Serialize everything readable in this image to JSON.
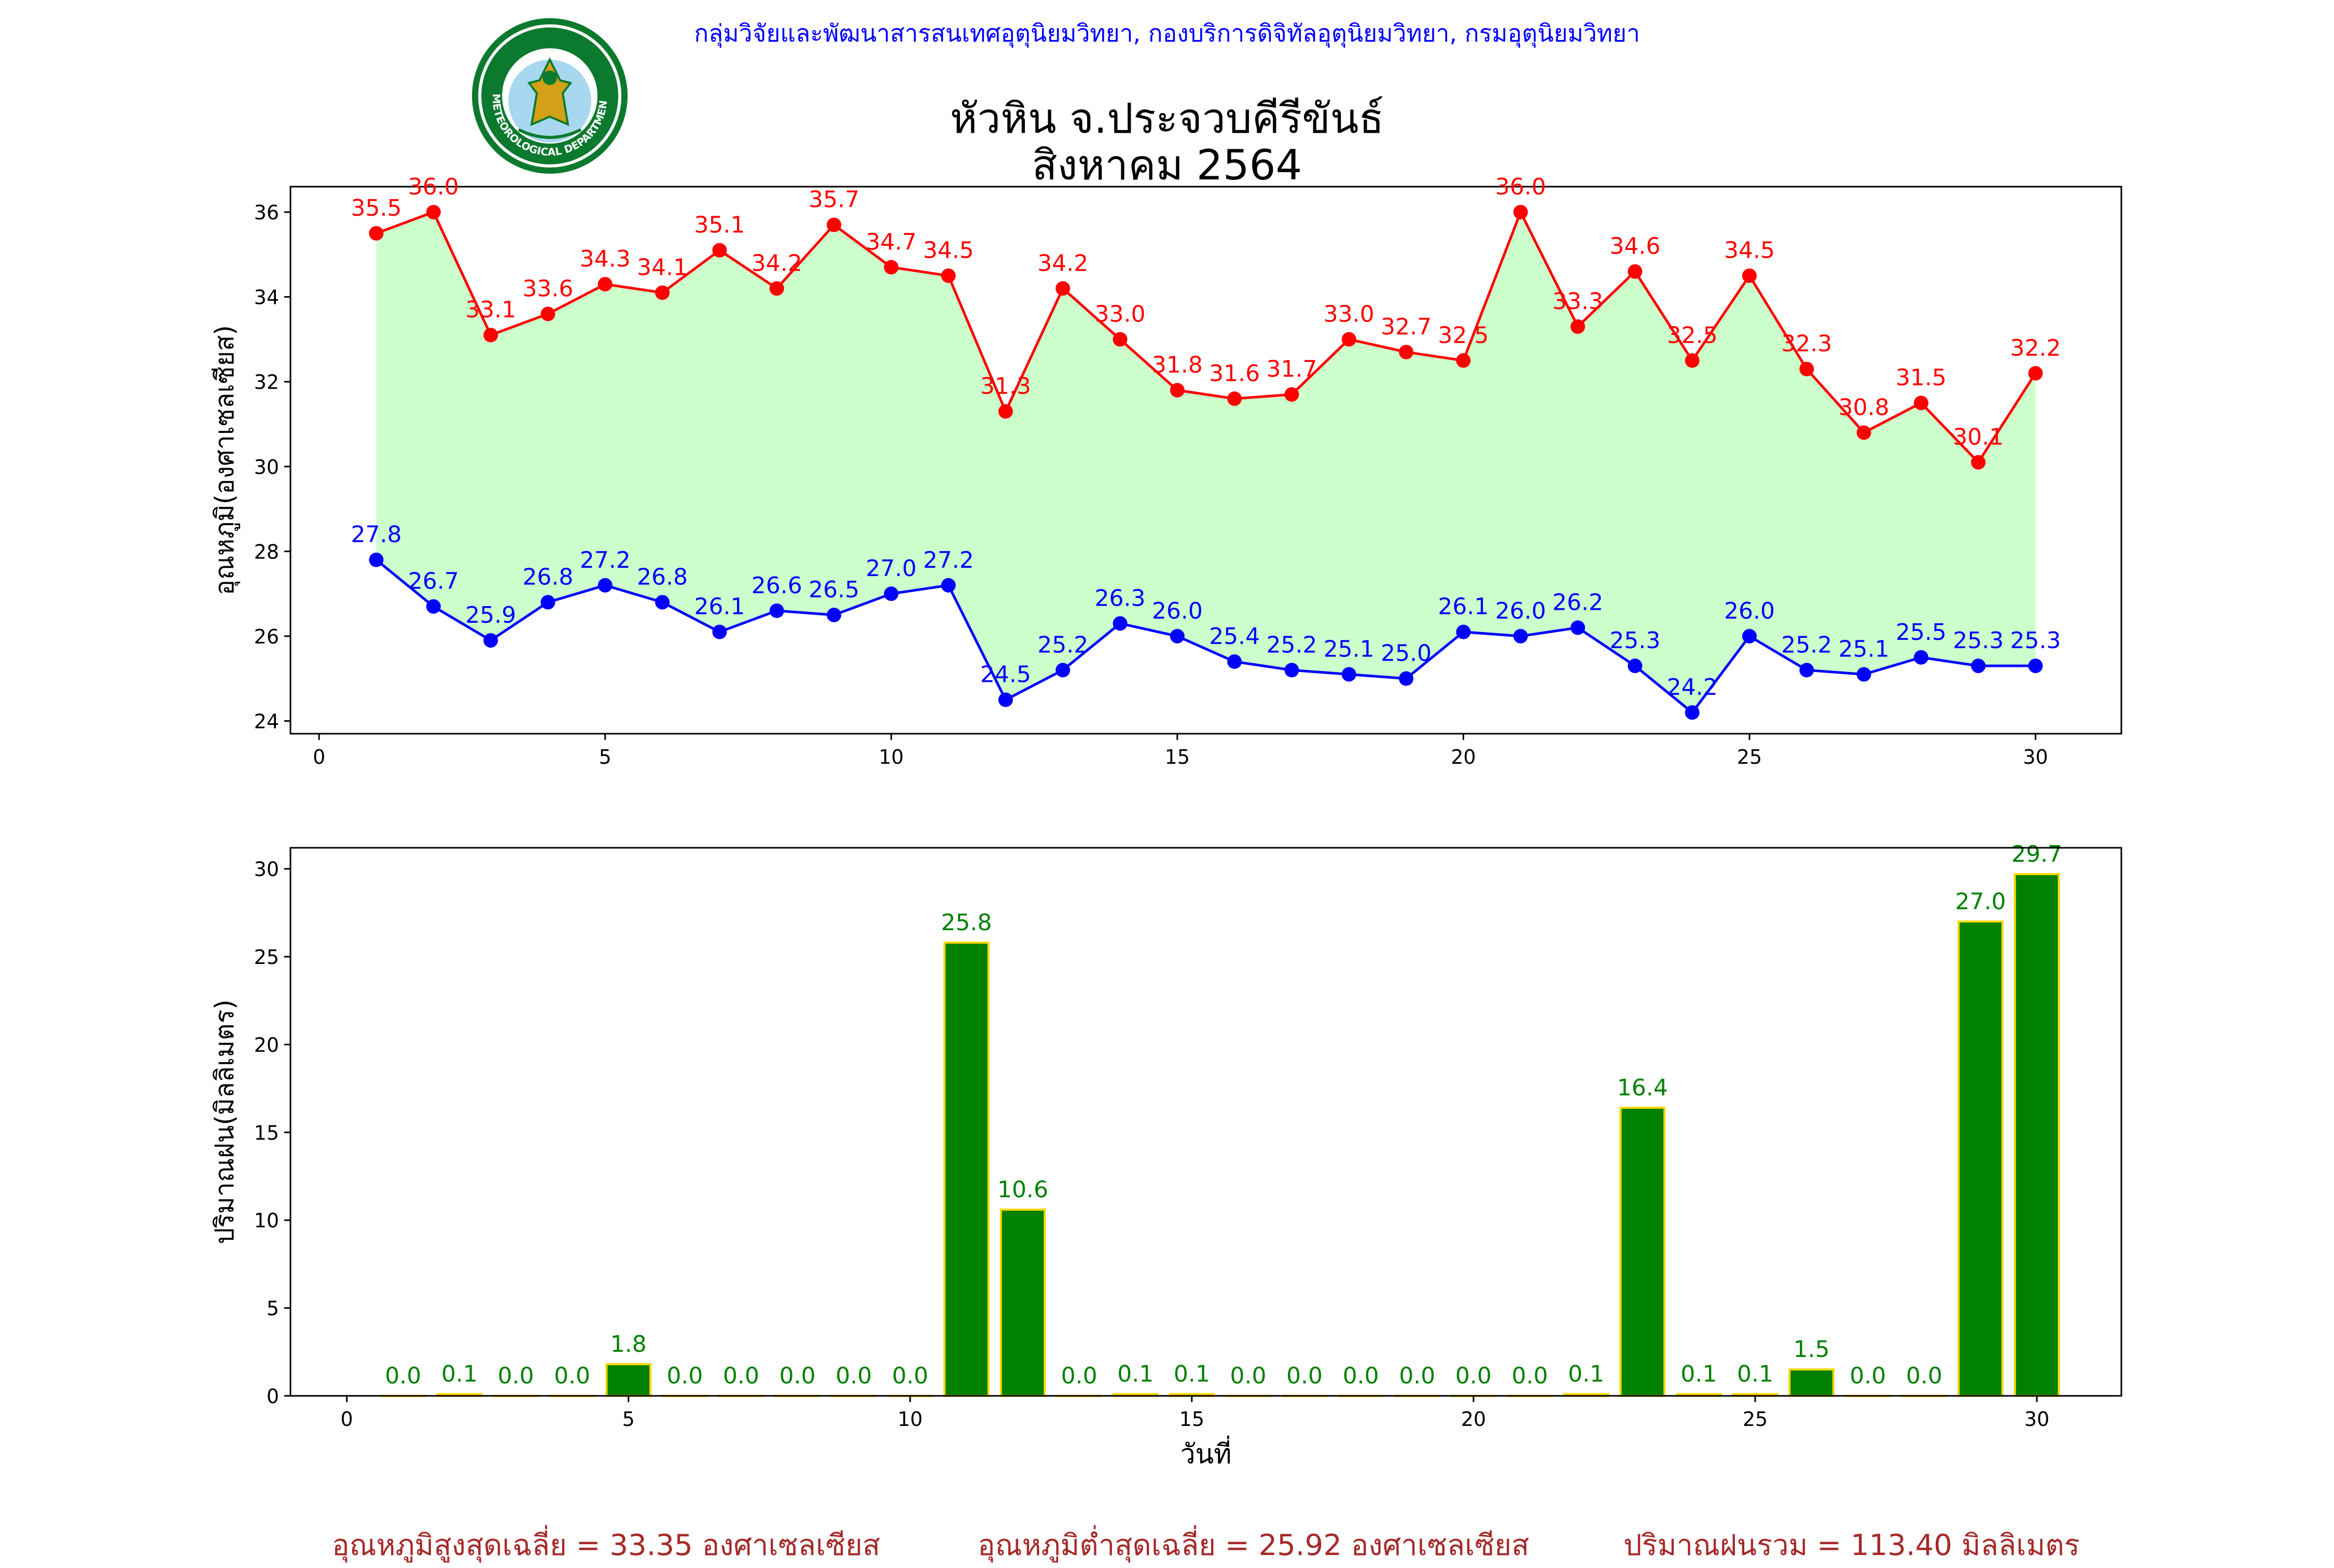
{
  "header": {
    "credit": "กลุ่มวิจัยและพัฒนาสารสนเทศอุตุนิยมวิทยา, กองบริการดิจิทัลอุตุนิยมวิทยา, กรมอุตุนิยมวิทยา",
    "logo_text_top": "กรมอุตุนิยมวิทยา",
    "logo_text_bottom": "METEOROLOGICAL DEPARTMENT",
    "title_line1": "หัวหิน จ.ประจวบคีรีขันธ์",
    "title_line2": "สิงหาคม 2564"
  },
  "colors": {
    "tmax": "#ff0000",
    "tmin": "#0000ff",
    "fill": "#ccffcc",
    "rain_bar": "#008000",
    "rain_edge": "#ffd700",
    "rain_label": "#008000",
    "footer": "#a52a2a"
  },
  "chart_data": [
    {
      "type": "line",
      "title": "หัวหิน จ.ประจวบคีรีขันธ์ สิงหาคม 2564",
      "ylabel": "อุณหภูมิ(องศาเซลเซียส)",
      "xlabel": "",
      "x": [
        1,
        2,
        3,
        4,
        5,
        6,
        7,
        8,
        9,
        10,
        11,
        12,
        13,
        14,
        15,
        16,
        17,
        18,
        19,
        20,
        21,
        22,
        23,
        24,
        25,
        26,
        27,
        28,
        29,
        30
      ],
      "series": [
        {
          "values": [
            35.5,
            36.0,
            33.1,
            33.6,
            34.3,
            34.1,
            35.1,
            34.2,
            35.7,
            34.7,
            34.5,
            31.3,
            34.2,
            33.0,
            31.8,
            31.6,
            31.7,
            33.0,
            32.7,
            32.5,
            36.0,
            33.3,
            34.6,
            32.5,
            34.5,
            32.3,
            30.8,
            31.5,
            30.1,
            32.2
          ]
        },
        {
          "values": [
            27.8,
            26.7,
            25.9,
            26.8,
            27.2,
            26.8,
            26.1,
            26.6,
            26.5,
            27.0,
            27.2,
            24.5,
            25.2,
            26.3,
            26.0,
            25.4,
            25.2,
            25.1,
            25.0,
            26.1,
            26.0,
            26.2,
            25.3,
            24.2,
            26.0,
            25.2,
            25.1,
            25.5,
            25.3,
            25.3
          ]
        }
      ],
      "xlim": [
        -0.5,
        31.5
      ],
      "ylim": [
        23.7,
        36.6
      ],
      "xticks": [
        "0",
        "5",
        "10",
        "15",
        "20",
        "25",
        "30"
      ],
      "yticks": [
        "24",
        "26",
        "28",
        "30",
        "32",
        "34",
        "36"
      ],
      "fill_between": true,
      "grid": false
    },
    {
      "type": "bar",
      "title": "",
      "ylabel": "ปริมาณฝน(มิลลิเมตร)",
      "xlabel": "วันที่",
      "x": [
        1,
        2,
        3,
        4,
        5,
        6,
        7,
        8,
        9,
        10,
        11,
        12,
        13,
        14,
        15,
        16,
        17,
        18,
        19,
        20,
        21,
        22,
        23,
        24,
        25,
        26,
        27,
        28,
        29,
        30
      ],
      "values": [
        0.0,
        0.1,
        0.0,
        0.0,
        1.8,
        0.0,
        0.0,
        0.0,
        0.0,
        0.0,
        25.8,
        10.6,
        0.0,
        0.1,
        0.1,
        0.0,
        0.0,
        0.0,
        0.0,
        0.0,
        0.0,
        0.1,
        16.4,
        0.1,
        0.1,
        1.5,
        0.0,
        0.0,
        27.0,
        29.7
      ],
      "xlim": [
        -1,
        31.5
      ],
      "ylim": [
        0,
        31.2
      ],
      "xticks": [
        "0",
        "5",
        "10",
        "15",
        "20",
        "25",
        "30"
      ],
      "yticks": [
        "0",
        "5",
        "10",
        "15",
        "20",
        "25",
        "30"
      ],
      "grid": false
    }
  ],
  "footer": {
    "avg_tmax": "อุณหภูมิสูงสุดเฉลี่ย = 33.35 องศาเซลเซียส",
    "avg_tmin": "อุณหภูมิต่ำสุดเฉลี่ย = 25.92 องศาเซลเซียส",
    "total_rain": "ปริมาณฝนรวม = 113.40 มิลลิเมตร"
  }
}
